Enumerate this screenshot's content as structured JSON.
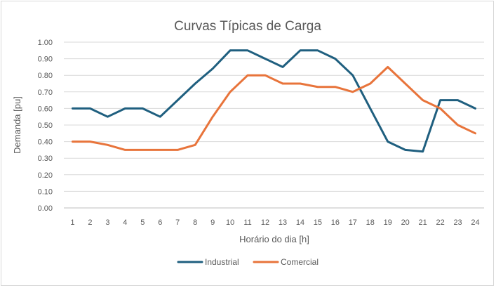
{
  "chart_data": {
    "type": "line",
    "title": "Curvas Típicas de Carga",
    "xlabel": "Horário do dia [h]",
    "ylabel": "Demanda [pu]",
    "categories": [
      "1",
      "2",
      "3",
      "4",
      "5",
      "6",
      "7",
      "8",
      "9",
      "10",
      "11",
      "12",
      "13",
      "14",
      "15",
      "16",
      "17",
      "18",
      "19",
      "20",
      "21",
      "22",
      "23",
      "24"
    ],
    "y_ticks": [
      "0.00",
      "0.10",
      "0.20",
      "0.30",
      "0.40",
      "0.50",
      "0.60",
      "0.70",
      "0.80",
      "0.90",
      "1.00"
    ],
    "ylim": [
      0,
      1.0
    ],
    "grid": true,
    "legend_position": "bottom",
    "series": [
      {
        "name": "Industrial",
        "color": "#1f5f7f",
        "values": [
          0.6,
          0.6,
          0.55,
          0.6,
          0.6,
          0.55,
          0.65,
          0.75,
          0.84,
          0.95,
          0.95,
          0.9,
          0.85,
          0.95,
          0.95,
          0.9,
          0.8,
          0.6,
          0.4,
          0.35,
          0.34,
          0.65,
          0.65,
          0.6
        ]
      },
      {
        "name": "Comercial",
        "color": "#e8743b",
        "values": [
          0.4,
          0.4,
          0.38,
          0.35,
          0.35,
          0.35,
          0.35,
          0.38,
          0.55,
          0.7,
          0.8,
          0.8,
          0.75,
          0.75,
          0.73,
          0.73,
          0.7,
          0.75,
          0.85,
          0.75,
          0.65,
          0.6,
          0.5,
          0.45
        ]
      }
    ]
  }
}
